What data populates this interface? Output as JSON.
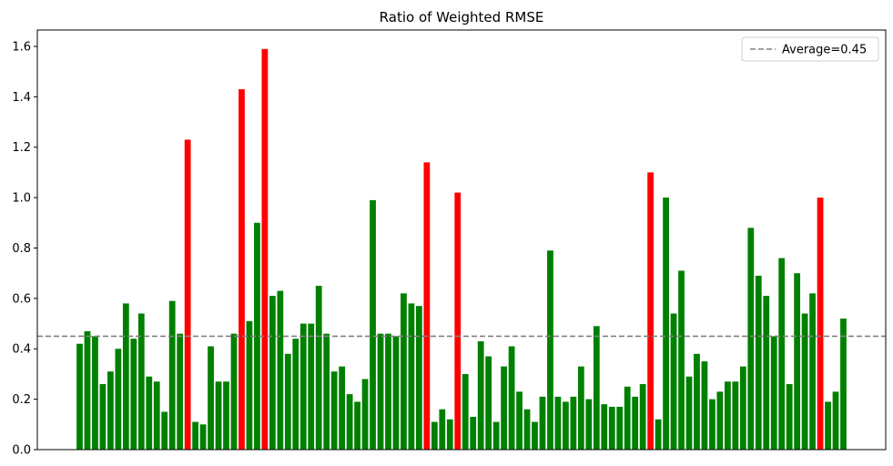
{
  "chart_data": {
    "type": "bar",
    "title": "Ratio of Weighted RMSE",
    "xlabel": "",
    "ylabel": "",
    "ylim": [
      0,
      1.665
    ],
    "yticks": [
      "0.0",
      "0.2",
      "0.4",
      "0.6",
      "0.8",
      "1.0",
      "1.2",
      "1.4",
      "1.6"
    ],
    "ytick_values": [
      0,
      0.2,
      0.4,
      0.6,
      0.8,
      1.0,
      1.2,
      1.4,
      1.6
    ],
    "x_ticks_visible": false,
    "grid": false,
    "legend_placement": "top-right",
    "threshold": 1.0,
    "colors": {
      "below": "#008000",
      "above": "#ff0000",
      "average_line": "#808080"
    },
    "average": {
      "label": "Average=0.45",
      "value": 0.45
    },
    "values": [
      0.42,
      0.47,
      0.45,
      0.26,
      0.31,
      0.4,
      0.58,
      0.44,
      0.54,
      0.29,
      0.27,
      0.15,
      0.59,
      0.46,
      1.23,
      0.11,
      0.1,
      0.41,
      0.27,
      0.27,
      0.46,
      1.43,
      0.51,
      0.9,
      1.59,
      0.61,
      0.63,
      0.38,
      0.44,
      0.5,
      0.5,
      0.65,
      0.46,
      0.31,
      0.33,
      0.22,
      0.19,
      0.28,
      0.99,
      0.46,
      0.46,
      0.45,
      0.62,
      0.58,
      0.57,
      1.14,
      0.11,
      0.16,
      0.12,
      1.02,
      0.3,
      0.13,
      0.43,
      0.37,
      0.11,
      0.33,
      0.41,
      0.23,
      0.16,
      0.11,
      0.21,
      0.79,
      0.21,
      0.19,
      0.21,
      0.33,
      0.2,
      0.49,
      0.18,
      0.17,
      0.17,
      0.25,
      0.21,
      0.26,
      1.1,
      0.12,
      1.0,
      0.54,
      0.71,
      0.29,
      0.38,
      0.35,
      0.2,
      0.23,
      0.27,
      0.27,
      0.33,
      0.88,
      0.69,
      0.61,
      0.45,
      0.76,
      0.26,
      0.7,
      0.54,
      0.62,
      1.0,
      0.19,
      0.23,
      0.52
    ],
    "above_threshold_indices": [
      14,
      21,
      24,
      45,
      49,
      74,
      96
    ]
  }
}
